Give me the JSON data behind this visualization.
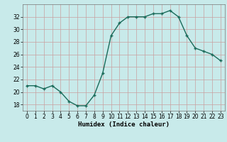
{
  "x": [
    0,
    1,
    2,
    3,
    4,
    5,
    6,
    7,
    8,
    9,
    10,
    11,
    12,
    13,
    14,
    15,
    16,
    17,
    18,
    19,
    20,
    21,
    22,
    23
  ],
  "y": [
    21,
    21,
    20.5,
    21,
    20,
    18.5,
    17.8,
    17.8,
    19.5,
    23,
    29,
    31,
    32,
    32,
    32,
    32.5,
    32.5,
    33,
    32,
    29,
    27,
    26.5,
    26,
    25
  ],
  "line_color": "#1a6b5a",
  "marker_color": "#1a6b5a",
  "bg_color": "#c8eaea",
  "grid_color": "#b0cccc",
  "xlabel": "Humidex (Indice chaleur)",
  "ylim": [
    17,
    34
  ],
  "xlim": [
    -0.5,
    23.5
  ],
  "yticks": [
    18,
    20,
    22,
    24,
    26,
    28,
    30,
    32
  ],
  "xticks": [
    0,
    1,
    2,
    3,
    4,
    5,
    6,
    7,
    8,
    9,
    10,
    11,
    12,
    13,
    14,
    15,
    16,
    17,
    18,
    19,
    20,
    21,
    22,
    23
  ],
  "tick_fontsize": 5.5,
  "label_fontsize": 6.5
}
